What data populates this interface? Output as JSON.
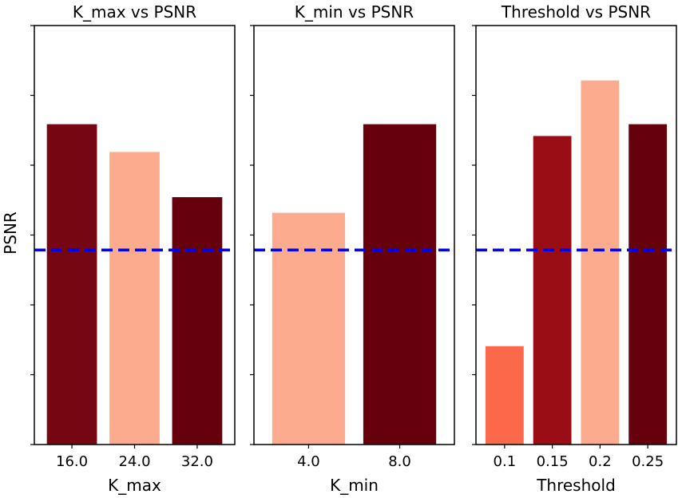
{
  "figure": {
    "ylabel": "PSNR"
  },
  "chart_data": [
    {
      "type": "bar",
      "title": "K_max vs PSNR",
      "xlabel": "K_max",
      "ylabel": "PSNR",
      "categories": [
        "16.0",
        "24.0",
        "32.0"
      ],
      "values": [
        0.922,
        0.842,
        0.712
      ],
      "colors": [
        "#760612",
        "#fcab8f",
        "#67000d"
      ],
      "reference_line": 0.56,
      "reference_color": "#0000ee",
      "ylim": [
        0,
        1.206
      ],
      "yticks_hidden": true
    },
    {
      "type": "bar",
      "title": "K_min vs PSNR",
      "xlabel": "K_min",
      "ylabel": "",
      "categories": [
        "4.0",
        "8.0"
      ],
      "values": [
        0.667,
        0.922
      ],
      "colors": [
        "#fcab8f",
        "#67000d"
      ],
      "reference_line": 0.56,
      "reference_color": "#0000ee",
      "ylim": [
        0,
        1.206
      ],
      "yticks_hidden": true
    },
    {
      "type": "bar",
      "title": "Threshold vs PSNR",
      "xlabel": "Threshold",
      "ylabel": "",
      "categories": [
        "0.1",
        "0.15",
        "0.2",
        "0.25"
      ],
      "values": [
        0.283,
        0.888,
        1.048,
        0.922
      ],
      "colors": [
        "#fb694a",
        "#9b0d14",
        "#fcab8f",
        "#67000d"
      ],
      "reference_line": 0.56,
      "reference_color": "#0000ee",
      "ylim": [
        0,
        1.206
      ],
      "yticks_hidden": true
    }
  ]
}
